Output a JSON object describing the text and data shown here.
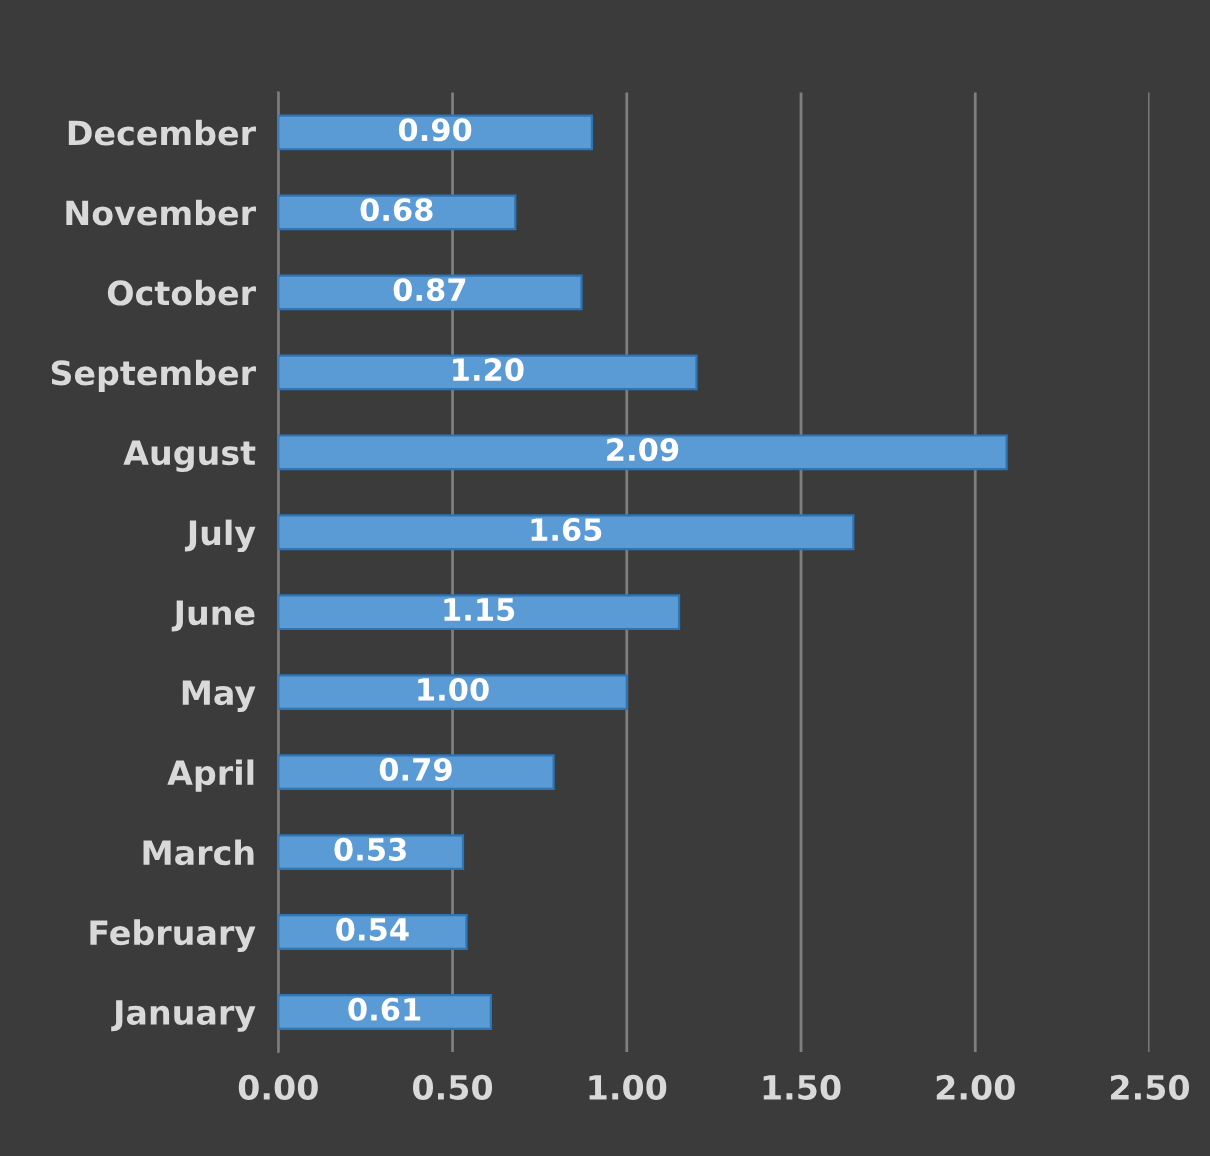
{
  "chart_data": {
    "type": "bar",
    "orientation": "horizontal",
    "categories": [
      "December",
      "November",
      "October",
      "September",
      "August",
      "July",
      "June",
      "May",
      "April",
      "March",
      "February",
      "January"
    ],
    "values": [
      0.9,
      0.68,
      0.87,
      1.2,
      2.09,
      1.65,
      1.15,
      1.0,
      0.79,
      0.53,
      0.54,
      0.61
    ],
    "color": "#5b9bd5",
    "value_labels": [
      "0.90",
      "0.68",
      "0.87",
      "1.20",
      "2.09",
      "1.65",
      "1.15",
      "1.00",
      "0.79",
      "0.53",
      "0.54",
      "0.61"
    ],
    "xlim": [
      0,
      2.5
    ],
    "xticks": [
      {
        "value": 0,
        "label": "0.00"
      },
      {
        "value": 0.5,
        "label": "0.50"
      },
      {
        "value": 1,
        "label": "1.00"
      },
      {
        "value": 1.5,
        "label": "1.50"
      },
      {
        "value": 2,
        "label": "2.00"
      },
      {
        "value": 2.5,
        "label": "2.50"
      }
    ],
    "grid": "x",
    "legend": false
  }
}
